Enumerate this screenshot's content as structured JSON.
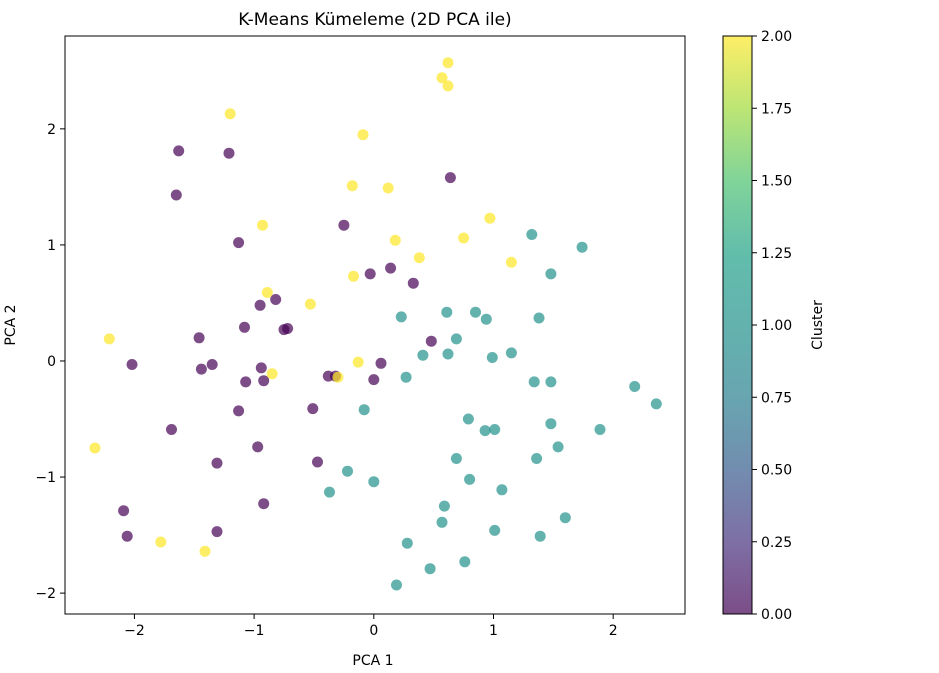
{
  "chart_data": {
    "type": "scatter",
    "title": "K-Means Kümeleme (2D PCA ile)",
    "xlabel": "PCA 1",
    "ylabel": "PCA 2",
    "xlim": [
      -2.58,
      2.6
    ],
    "ylim": [
      -2.18,
      2.8
    ],
    "x_ticks": [
      -2,
      -1,
      0,
      1,
      2
    ],
    "x_tick_labels": [
      "−2",
      "−1",
      "0",
      "1",
      "2"
    ],
    "y_ticks": [
      -2,
      -1,
      0,
      1,
      2
    ],
    "y_tick_labels": [
      "−2",
      "−1",
      "0",
      "1",
      "2"
    ],
    "grid": false,
    "colorbar": {
      "label": "Cluster",
      "range": [
        0,
        2
      ],
      "ticks": [
        0,
        0.25,
        0.5,
        0.75,
        1.0,
        1.25,
        1.5,
        1.75,
        2.0
      ],
      "tick_labels": [
        "0.00",
        "0.25",
        "0.50",
        "0.75",
        "1.00",
        "1.25",
        "1.50",
        "1.75",
        "2.00"
      ],
      "colormap": "viridis"
    },
    "colors": {
      "cluster_0": "#440154",
      "cluster_1": "#21918c",
      "cluster_2": "#fde725"
    },
    "series": [
      {
        "cluster": 0,
        "points": [
          [
            -1.63,
            1.81
          ],
          [
            -1.21,
            1.79
          ],
          [
            -1.65,
            1.43
          ],
          [
            -1.13,
            1.02
          ],
          [
            -0.25,
            1.17
          ],
          [
            0.64,
            1.58
          ],
          [
            -0.03,
            0.75
          ],
          [
            0.14,
            0.8
          ],
          [
            0.33,
            0.67
          ],
          [
            -0.95,
            0.48
          ],
          [
            -0.82,
            0.53
          ],
          [
            -0.72,
            0.28
          ],
          [
            -0.75,
            0.27
          ],
          [
            -1.08,
            0.29
          ],
          [
            -1.46,
            0.2
          ],
          [
            -2.02,
            -0.03
          ],
          [
            -1.35,
            -0.03
          ],
          [
            -1.44,
            -0.07
          ],
          [
            -0.94,
            -0.06
          ],
          [
            -1.07,
            -0.18
          ],
          [
            -0.92,
            -0.17
          ],
          [
            -0.38,
            -0.13
          ],
          [
            -0.32,
            -0.13
          ],
          [
            0.06,
            -0.02
          ],
          [
            0.48,
            0.17
          ],
          [
            0.0,
            -0.16
          ],
          [
            -1.13,
            -0.43
          ],
          [
            -0.51,
            -0.41
          ],
          [
            -1.69,
            -0.59
          ],
          [
            -0.97,
            -0.74
          ],
          [
            -1.31,
            -0.88
          ],
          [
            -0.47,
            -0.87
          ],
          [
            -0.92,
            -1.23
          ],
          [
            -2.09,
            -1.29
          ],
          [
            -2.06,
            -1.51
          ],
          [
            -1.31,
            -1.47
          ]
        ]
      },
      {
        "cluster": 1,
        "points": [
          [
            1.32,
            1.09
          ],
          [
            1.74,
            0.98
          ],
          [
            1.48,
            0.75
          ],
          [
            0.61,
            0.42
          ],
          [
            0.85,
            0.42
          ],
          [
            0.94,
            0.36
          ],
          [
            0.23,
            0.38
          ],
          [
            1.38,
            0.37
          ],
          [
            0.69,
            0.19
          ],
          [
            0.41,
            0.05
          ],
          [
            0.62,
            0.06
          ],
          [
            0.99,
            0.03
          ],
          [
            1.15,
            0.07
          ],
          [
            0.27,
            -0.14
          ],
          [
            1.34,
            -0.18
          ],
          [
            1.48,
            -0.18
          ],
          [
            -0.08,
            -0.42
          ],
          [
            0.79,
            -0.5
          ],
          [
            0.93,
            -0.6
          ],
          [
            1.01,
            -0.59
          ],
          [
            1.48,
            -0.54
          ],
          [
            1.89,
            -0.59
          ],
          [
            1.54,
            -0.74
          ],
          [
            1.36,
            -0.84
          ],
          [
            0.69,
            -0.84
          ],
          [
            -0.22,
            -0.95
          ],
          [
            0.0,
            -1.04
          ],
          [
            0.8,
            -1.02
          ],
          [
            -0.37,
            -1.13
          ],
          [
            1.07,
            -1.11
          ],
          [
            0.59,
            -1.25
          ],
          [
            0.57,
            -1.39
          ],
          [
            1.01,
            -1.46
          ],
          [
            1.6,
            -1.35
          ],
          [
            0.28,
            -1.57
          ],
          [
            1.39,
            -1.51
          ],
          [
            0.47,
            -1.79
          ],
          [
            0.76,
            -1.73
          ],
          [
            0.19,
            -1.93
          ],
          [
            2.18,
            -0.22
          ],
          [
            2.36,
            -0.37
          ]
        ]
      },
      {
        "cluster": 2,
        "points": [
          [
            0.62,
            2.57
          ],
          [
            0.57,
            2.44
          ],
          [
            0.62,
            2.37
          ],
          [
            -1.2,
            2.13
          ],
          [
            -0.09,
            1.95
          ],
          [
            -0.18,
            1.51
          ],
          [
            0.12,
            1.49
          ],
          [
            0.97,
            1.23
          ],
          [
            -0.93,
            1.17
          ],
          [
            0.75,
            1.06
          ],
          [
            0.18,
            1.04
          ],
          [
            0.38,
            0.89
          ],
          [
            1.15,
            0.85
          ],
          [
            -0.17,
            0.73
          ],
          [
            -0.89,
            0.59
          ],
          [
            -0.53,
            0.49
          ],
          [
            -2.21,
            0.19
          ],
          [
            -0.13,
            -0.01
          ],
          [
            -0.85,
            -0.11
          ],
          [
            -0.3,
            -0.14
          ],
          [
            -2.33,
            -0.75
          ],
          [
            -1.78,
            -1.56
          ],
          [
            -1.41,
            -1.64
          ]
        ]
      }
    ]
  }
}
